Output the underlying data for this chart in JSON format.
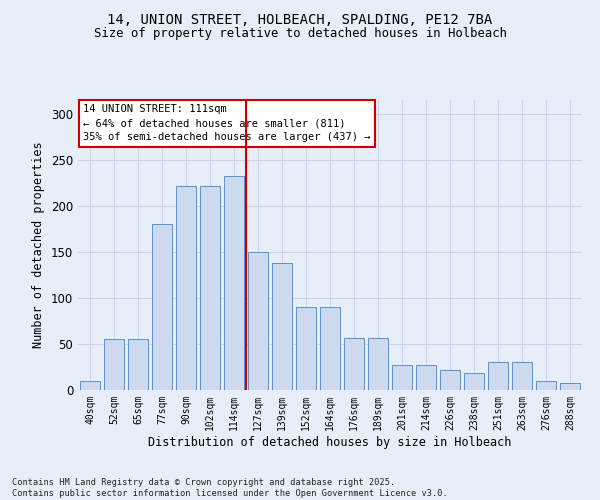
{
  "title_line1": "14, UNION STREET, HOLBEACH, SPALDING, PE12 7BA",
  "title_line2": "Size of property relative to detached houses in Holbeach",
  "xlabel": "Distribution of detached houses by size in Holbeach",
  "ylabel": "Number of detached properties",
  "footnote": "Contains HM Land Registry data © Crown copyright and database right 2025.\nContains public sector information licensed under the Open Government Licence v3.0.",
  "bar_labels": [
    "40sqm",
    "52sqm",
    "65sqm",
    "77sqm",
    "90sqm",
    "102sqm",
    "114sqm",
    "127sqm",
    "139sqm",
    "152sqm",
    "164sqm",
    "176sqm",
    "189sqm",
    "201sqm",
    "214sqm",
    "226sqm",
    "238sqm",
    "251sqm",
    "263sqm",
    "276sqm",
    "288sqm"
  ],
  "bar_values": [
    10,
    55,
    55,
    180,
    222,
    222,
    232,
    150,
    138,
    90,
    90,
    57,
    57,
    27,
    27,
    22,
    18,
    30,
    30,
    10,
    8
  ],
  "bar_color": "#ccd9ee",
  "bar_edge_color": "#6090c8",
  "annotation_box_text": "14 UNION STREET: 111sqm\n← 64% of detached houses are smaller (811)\n35% of semi-detached houses are larger (437) →",
  "annotation_box_color": "#ffffff",
  "annotation_box_edge_color": "#cc0000",
  "vline_x": 6.5,
  "vline_color": "#cc0000",
  "grid_color": "#c8d4e8",
  "bg_color": "#e8eef8",
  "ylim": [
    0,
    315
  ],
  "yticks": [
    0,
    50,
    100,
    150,
    200,
    250,
    300
  ]
}
